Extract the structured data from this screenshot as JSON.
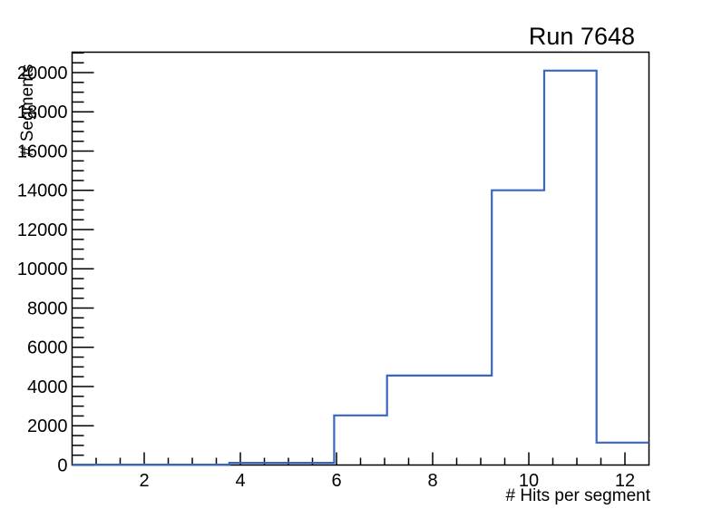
{
  "window": {
    "background": "#ffffff"
  },
  "chart_data": {
    "type": "histogram-step",
    "title": "Run 7648",
    "xlabel": "# Hits per segment",
    "ylabel": "# Segments",
    "xlim": [
      0.5,
      12.5
    ],
    "ylim": [
      0,
      21040
    ],
    "x_major_ticks": [
      2,
      4,
      6,
      8,
      10,
      12
    ],
    "x_minor_step": 0.5,
    "y_major_step": 2000,
    "y_major_max": 20000,
    "y_minor_step": 500,
    "bin_edges": [
      0.5,
      1.59,
      2.68,
      3.77,
      4.86,
      5.95,
      7.05,
      8.14,
      9.23,
      10.32,
      11.41,
      12.5
    ],
    "counts": [
      20,
      20,
      20,
      110,
      110,
      2530,
      4560,
      4560,
      14000,
      20100,
      1140
    ],
    "line_color": "#3866c2",
    "axis_color": "#000000",
    "grid": false,
    "legend": null
  }
}
